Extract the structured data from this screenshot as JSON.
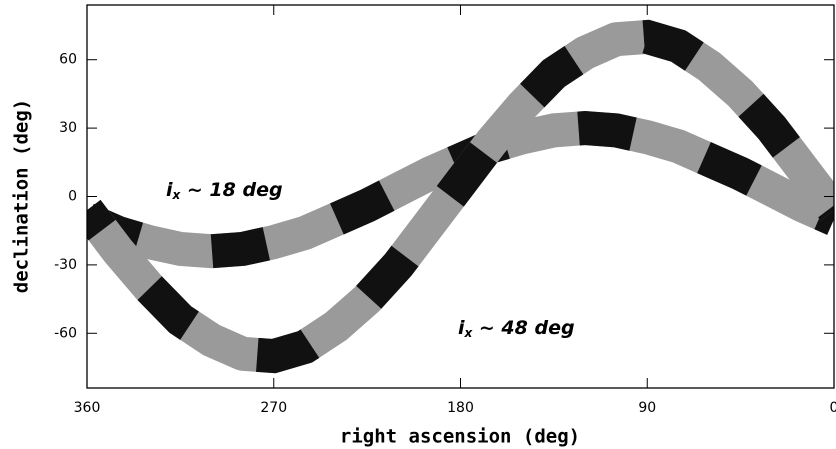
{
  "chart_data": {
    "type": "line",
    "x_label": "right ascension (deg)",
    "y_label": "declination (deg)",
    "x": [
      360,
      345,
      330,
      315,
      300,
      285,
      270,
      255,
      240,
      225,
      210,
      195,
      180,
      165,
      150,
      135,
      120,
      105,
      90,
      75,
      60,
      45,
      30,
      15,
      0
    ],
    "series": [
      {
        "values": [
          -10,
          -16,
          -20,
          -23,
          -24,
          -23,
          -20,
          -16,
          -10,
          -4,
          3,
          10,
          16,
          22,
          26,
          29,
          30,
          29,
          26,
          22,
          16,
          10,
          3,
          -4,
          -10
        ]
      },
      {
        "values": [
          -6,
          -24,
          -40,
          -54,
          -63,
          -69,
          -70,
          -66,
          -57,
          -45,
          -30,
          -12,
          6,
          24,
          40,
          54,
          63,
          69,
          70,
          66,
          57,
          45,
          30,
          12,
          -6
        ]
      }
    ],
    "band_colors": [
      "#9a9a9a",
      "#111111"
    ],
    "annotations": [
      {
        "symbol": "i",
        "sub": "x",
        "text": " ~ 18 deg"
      },
      {
        "symbol": "i",
        "sub": "x",
        "text": " ~ 48 deg"
      }
    ],
    "xlim": [
      360,
      0
    ],
    "ylim": [
      -84,
      84
    ],
    "xticks": [
      360,
      270,
      180,
      90,
      0
    ],
    "yticks": [
      -60,
      -30,
      0,
      30,
      60
    ]
  }
}
